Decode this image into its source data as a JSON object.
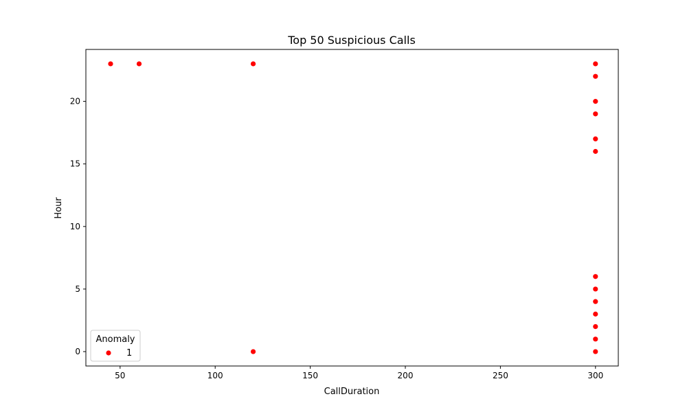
{
  "chart_data": {
    "type": "scatter",
    "title": "Top 50 Suspicious Calls",
    "xlabel": "CallDuration",
    "ylabel": "Hour",
    "xlim": [
      32,
      312
    ],
    "ylim": [
      -1.15,
      24.15
    ],
    "xticks": [
      50,
      100,
      150,
      200,
      250,
      300
    ],
    "yticks": [
      0,
      5,
      10,
      15,
      20
    ],
    "grid": false,
    "legend": {
      "title": "Anomaly",
      "placement": "lower-left",
      "entries": [
        {
          "label": "1",
          "color": "#ff0000"
        }
      ]
    },
    "series": [
      {
        "name": "1",
        "color": "#ff0000",
        "points": [
          {
            "x": 45,
            "y": 23
          },
          {
            "x": 60,
            "y": 23
          },
          {
            "x": 120,
            "y": 23
          },
          {
            "x": 120,
            "y": 0
          },
          {
            "x": 300,
            "y": 23
          },
          {
            "x": 300,
            "y": 22
          },
          {
            "x": 300,
            "y": 20
          },
          {
            "x": 300,
            "y": 19
          },
          {
            "x": 300,
            "y": 17
          },
          {
            "x": 300,
            "y": 16
          },
          {
            "x": 300,
            "y": 6
          },
          {
            "x": 300,
            "y": 5
          },
          {
            "x": 300,
            "y": 4
          },
          {
            "x": 300,
            "y": 3
          },
          {
            "x": 300,
            "y": 2
          },
          {
            "x": 300,
            "y": 1
          },
          {
            "x": 300,
            "y": 0
          }
        ]
      }
    ]
  }
}
